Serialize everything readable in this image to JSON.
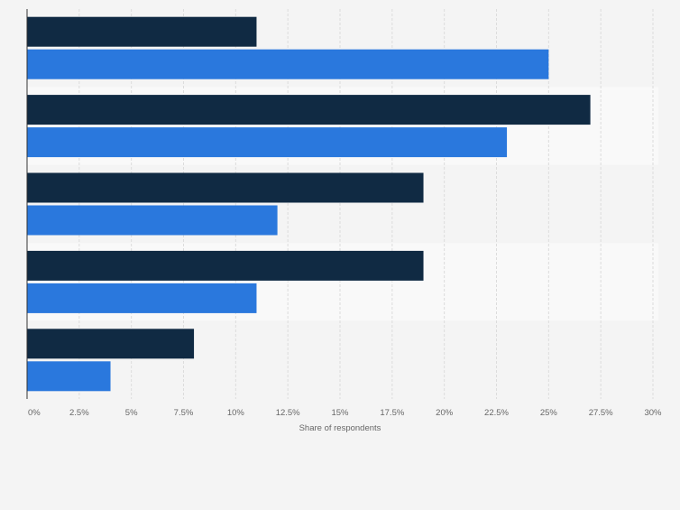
{
  "chart_data": {
    "type": "bar",
    "orientation": "horizontal",
    "categories": [
      "",
      "",
      "",
      "",
      ""
    ],
    "series": [
      {
        "values": [
          11,
          27,
          19,
          19,
          8
        ],
        "color": "#102a43"
      },
      {
        "values": [
          25,
          23,
          12,
          11,
          4
        ],
        "color": "#2a78dd"
      }
    ],
    "xlabel": "Share of respondents",
    "xlim": [
      0,
      30
    ],
    "xticks": [
      "0%",
      "2.5%",
      "5%",
      "7.5%",
      "10%",
      "12.5%",
      "15%",
      "17.5%",
      "20%",
      "22.5%",
      "25%",
      "27.5%",
      "30%"
    ],
    "grid": true,
    "legend": "none"
  }
}
